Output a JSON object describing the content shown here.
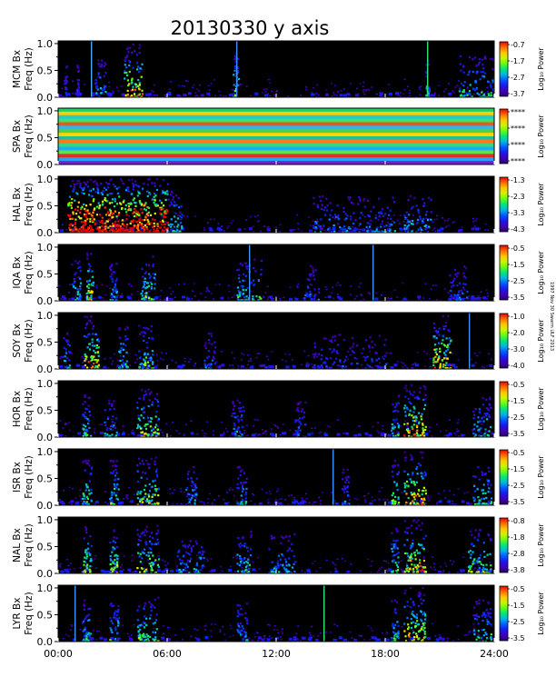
{
  "title": "20130330 y axis",
  "footnote": "1997 Nov 30 Swarm ULF 2013",
  "chart_data": {
    "type": "heatmap",
    "title": "20130330 y axis",
    "x": {
      "range_hours": [
        0,
        24
      ],
      "ticks": [
        "00:00",
        "06:00",
        "12:00",
        "18:00",
        "24:00"
      ]
    },
    "y": {
      "label": "Freq (Hz)",
      "range": [
        0,
        1.05
      ],
      "ticks": [
        "0.0",
        "0.5",
        "1.0"
      ]
    },
    "colorbar": {
      "label": "Log₁₀ Power",
      "palette": "rainbow"
    },
    "panels": [
      {
        "station": "MCM Bx",
        "ylabel": "Freq (Hz)",
        "cb_ticks": [
          "-0.7",
          "-1.7",
          "-2.7",
          "-3.7"
        ],
        "activity": [
          [
            0.3,
            0.45,
            0.3
          ],
          [
            1.0,
            1.1,
            0.35
          ],
          [
            2.0,
            2.6,
            0.5
          ],
          [
            3.6,
            4.6,
            1.0
          ],
          [
            9.6,
            9.9,
            0.7
          ],
          [
            20.2,
            20.4,
            0.5
          ],
          [
            22.0,
            24,
            0.6
          ]
        ],
        "lines": [
          [
            1.8,
            "#4aa8ff"
          ],
          [
            9.8,
            "#3f8fff"
          ],
          [
            20.3,
            "#2fe07a"
          ]
        ]
      },
      {
        "station": "SPA Bx",
        "ylabel": "Freq (Hz)",
        "cb_ticks": [
          "****",
          "****",
          "****",
          "****"
        ],
        "activity": [],
        "lines": []
      },
      {
        "station": "HAL Bx",
        "ylabel": "Freq (Hz)",
        "cb_ticks": [
          "-1.3",
          "-2.3",
          "-3.3",
          "-4.3"
        ],
        "activity": [
          [
            0.5,
            6.0,
            1.6
          ],
          [
            6.0,
            6.8,
            0.6
          ],
          [
            14.0,
            18.5,
            0.45
          ],
          [
            19.0,
            20.5,
            0.5
          ]
        ],
        "lines": []
      },
      {
        "station": "IQA Bx",
        "ylabel": "Freq (Hz)",
        "cb_ticks": [
          "-0.5",
          "-1.5",
          "-2.5",
          "-3.5"
        ],
        "activity": [
          [
            0.7,
            1.2,
            0.6
          ],
          [
            1.5,
            1.9,
            0.9
          ],
          [
            2.8,
            3.2,
            0.5
          ],
          [
            4.5,
            5.3,
            0.7
          ],
          [
            9.8,
            11.2,
            0.6
          ],
          [
            13.5,
            14.3,
            0.4
          ],
          [
            21.5,
            22.5,
            0.4
          ]
        ],
        "lines": [
          [
            10.5,
            "#3f8fff"
          ],
          [
            17.3,
            "#3f8fff"
          ]
        ]
      },
      {
        "station": "SOY Bx",
        "ylabel": "Freq (Hz)",
        "cb_ticks": [
          "-1.0",
          "-2.0",
          "-3.0",
          "-4.0"
        ],
        "activity": [
          [
            0.2,
            0.6,
            0.5
          ],
          [
            1.4,
            2.2,
            1.0
          ],
          [
            3.3,
            3.8,
            0.6
          ],
          [
            4.4,
            5.2,
            0.7
          ],
          [
            8.0,
            8.6,
            0.4
          ],
          [
            14.0,
            18.0,
            0.35
          ],
          [
            20.6,
            21.6,
            1.0
          ]
        ],
        "lines": [
          [
            22.6,
            "#3f8fff"
          ]
        ]
      },
      {
        "station": "HOR Bx",
        "ylabel": "Freq (Hz)",
        "cb_ticks": [
          "-0.5",
          "-1.5",
          "-2.5",
          "-3.5"
        ],
        "activity": [
          [
            1.3,
            1.8,
            0.6
          ],
          [
            2.5,
            3.2,
            0.5
          ],
          [
            4.3,
            5.5,
            0.8
          ],
          [
            9.5,
            10.2,
            0.5
          ],
          [
            13.0,
            13.6,
            0.4
          ],
          [
            18.3,
            18.7,
            0.6
          ],
          [
            19.0,
            20.2,
            1.0
          ],
          [
            22.8,
            23.8,
            0.6
          ]
        ],
        "lines": []
      },
      {
        "station": "ISR Bx",
        "ylabel": "Freq (Hz)",
        "cb_ticks": [
          "-0.5",
          "-1.5",
          "-2.5",
          "-3.5"
        ],
        "activity": [
          [
            1.3,
            1.8,
            0.7
          ],
          [
            2.8,
            3.3,
            0.7
          ],
          [
            4.3,
            5.5,
            0.8
          ],
          [
            7.0,
            7.6,
            0.5
          ],
          [
            9.8,
            10.4,
            0.5
          ],
          [
            15.6,
            16.0,
            0.4
          ],
          [
            18.3,
            18.7,
            0.7
          ],
          [
            19.0,
            20.2,
            1.0
          ],
          [
            22.8,
            23.8,
            0.6
          ]
        ],
        "lines": [
          [
            15.1,
            "#3f8fff"
          ]
        ]
      },
      {
        "station": "NAL Bx",
        "ylabel": "Freq (Hz)",
        "cb_ticks": [
          "-0.8",
          "-1.8",
          "-2.8",
          "-3.8"
        ],
        "activity": [
          [
            1.3,
            1.8,
            0.8
          ],
          [
            2.8,
            3.3,
            0.8
          ],
          [
            4.3,
            5.5,
            0.8
          ],
          [
            6.5,
            8.0,
            0.5
          ],
          [
            9.8,
            10.6,
            0.6
          ],
          [
            11.5,
            13.0,
            0.5
          ],
          [
            18.3,
            18.7,
            0.7
          ],
          [
            19.0,
            20.2,
            1.0
          ],
          [
            22.5,
            23.8,
            0.7
          ]
        ],
        "lines": []
      },
      {
        "station": "LYR Bx",
        "ylabel": "Freq (Hz)",
        "cb_ticks": [
          "-0.5",
          "-1.5",
          "-2.5",
          "-3.5"
        ],
        "activity": [
          [
            1.3,
            1.8,
            0.6
          ],
          [
            2.8,
            3.3,
            0.6
          ],
          [
            4.3,
            5.5,
            0.7
          ],
          [
            9.8,
            10.4,
            0.5
          ],
          [
            18.3,
            18.7,
            0.6
          ],
          [
            19.0,
            20.2,
            1.0
          ],
          [
            22.8,
            23.8,
            0.6
          ]
        ],
        "lines": [
          [
            0.9,
            "#3f8fff"
          ],
          [
            14.6,
            "#2fe07a"
          ]
        ]
      }
    ]
  }
}
